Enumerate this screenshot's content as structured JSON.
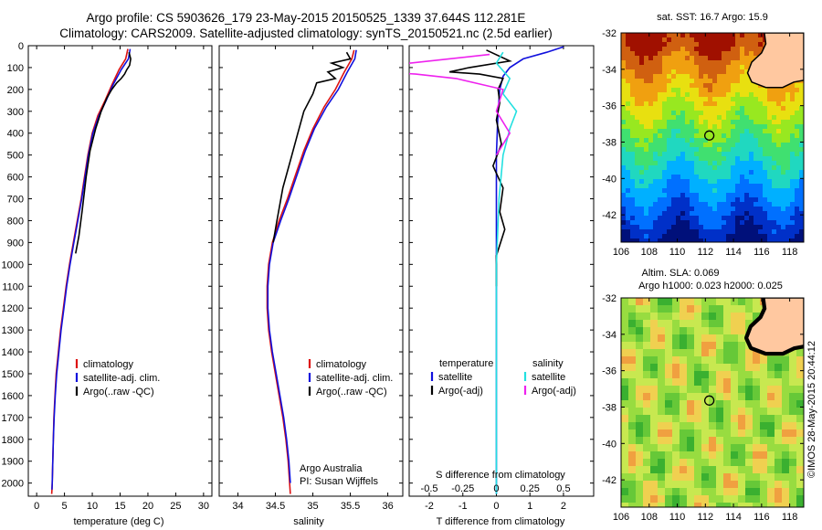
{
  "header": {
    "title_line1": "Argo profile: CS 5903626_179 23-May-2015 20150525_1339 37.644S 112.281E",
    "title_line2": "Climatology: CARS2009. Satellite-adjusted climatology: synTS_20150521.nc (2.5d earlier)"
  },
  "colors": {
    "climatology": "#dd1111",
    "satellite": "#1010dd",
    "argo": "#000000",
    "salinity_satellite": "#22e0e0",
    "salinity_argo": "#ee22ee",
    "land": "#ffc8a0",
    "coast": "#000000"
  },
  "chart_data": [
    {
      "type": "line",
      "id": "temperature",
      "xlabel": "temperature (deg C)",
      "ylabel": "",
      "xlim": [
        -1.5,
        31.5
      ],
      "ylim": [
        2060,
        0
      ],
      "xticks": [
        "0",
        "5",
        "10",
        "15",
        "20",
        "25",
        "30"
      ],
      "xtick_values": [
        0,
        5,
        10,
        15,
        20,
        25,
        30
      ],
      "yticks": [
        "0",
        "100",
        "200",
        "300",
        "400",
        "500",
        "600",
        "700",
        "800",
        "900",
        "1000",
        "1100",
        "1200",
        "1300",
        "1400",
        "1500",
        "1600",
        "1700",
        "1800",
        "1900",
        "2000"
      ],
      "ytick_values": [
        0,
        100,
        200,
        300,
        400,
        500,
        600,
        700,
        800,
        900,
        1000,
        1100,
        1200,
        1300,
        1400,
        1500,
        1600,
        1700,
        1800,
        1900,
        2000
      ],
      "series": [
        {
          "name": "climatology",
          "color_key": "climatology",
          "x": [
            16.4,
            16.0,
            14.8,
            13.5,
            12.3,
            11.0,
            10.0,
            9.2,
            8.6,
            8.0,
            7.3,
            6.6,
            5.9,
            5.3,
            4.8,
            4.3,
            3.9,
            3.5,
            3.3,
            3.1,
            3.0,
            2.9,
            2.85,
            2.8,
            2.75,
            2.7
          ],
          "y": [
            15,
            60,
            110,
            180,
            250,
            320,
            400,
            500,
            600,
            700,
            800,
            900,
            1000,
            1100,
            1200,
            1300,
            1400,
            1500,
            1600,
            1700,
            1800,
            1900,
            1950,
            2000,
            2030,
            2050
          ]
        },
        {
          "name": "satellite-adj. clim.",
          "color_key": "satellite",
          "x": [
            16.8,
            16.5,
            15.2,
            13.7,
            12.5,
            11.2,
            10.1,
            9.3,
            8.7,
            8.1,
            7.4,
            6.7,
            6.0,
            5.4,
            4.9,
            4.4,
            4.0,
            3.6,
            3.35,
            3.15,
            3.0,
            2.9,
            2.85,
            2.8,
            2.75
          ],
          "y": [
            15,
            60,
            110,
            180,
            250,
            320,
            400,
            500,
            600,
            700,
            800,
            900,
            1000,
            1100,
            1200,
            1300,
            1400,
            1500,
            1600,
            1700,
            1800,
            1900,
            1950,
            2000,
            2030
          ]
        },
        {
          "name": "Argo(..raw -QC)",
          "color_key": "argo",
          "x": [
            16.6,
            16.9,
            16.7,
            16.2,
            15.8,
            15.2,
            14.4,
            13.5,
            12.6,
            11.6,
            10.6,
            9.6,
            8.9,
            8.2,
            7.6,
            7.0
          ],
          "y": [
            30,
            60,
            90,
            110,
            130,
            150,
            170,
            200,
            240,
            300,
            380,
            480,
            600,
            750,
            870,
            950
          ]
        }
      ],
      "legend": [
        "climatology",
        "satellite-adj. clim.",
        "Argo(..raw -QC)"
      ],
      "legend_position": "bottom-right"
    },
    {
      "type": "line",
      "id": "salinity",
      "xlabel": "salinity",
      "xlim": [
        33.75,
        36.2
      ],
      "ylim": [
        2060,
        0
      ],
      "xticks": [
        "34",
        "34.5",
        "35",
        "35.5",
        "36"
      ],
      "xtick_values": [
        34,
        34.5,
        35,
        35.5,
        36
      ],
      "series": [
        {
          "name": "climatology",
          "color_key": "climatology",
          "x": [
            35.55,
            35.52,
            35.42,
            35.3,
            35.15,
            35.0,
            34.88,
            34.78,
            34.66,
            34.55,
            34.46,
            34.41,
            34.39,
            34.39,
            34.41,
            34.45,
            34.5,
            34.55,
            34.6,
            34.64,
            34.67,
            34.69,
            34.7
          ],
          "y": [
            20,
            60,
            120,
            200,
            280,
            380,
            480,
            580,
            700,
            800,
            900,
            1000,
            1100,
            1200,
            1300,
            1400,
            1500,
            1600,
            1700,
            1800,
            1900,
            2000,
            2050
          ]
        },
        {
          "name": "satellite-adj. clim.",
          "color_key": "satellite",
          "x": [
            35.58,
            35.56,
            35.46,
            35.34,
            35.18,
            35.02,
            34.9,
            34.8,
            34.68,
            34.57,
            34.47,
            34.42,
            34.4,
            34.4,
            34.42,
            34.46,
            34.51,
            34.56,
            34.61,
            34.65,
            34.68,
            34.7
          ],
          "y": [
            20,
            60,
            120,
            200,
            280,
            380,
            480,
            580,
            700,
            800,
            900,
            1000,
            1100,
            1200,
            1300,
            1400,
            1500,
            1600,
            1700,
            1800,
            1900,
            2000
          ]
        },
        {
          "name": "Argo(..raw -QC)",
          "color_key": "argo",
          "x": [
            35.45,
            35.5,
            35.25,
            35.4,
            35.2,
            35.3,
            35.05,
            35.0,
            34.88,
            34.8,
            34.72,
            34.6,
            34.52,
            34.47
          ],
          "y": [
            30,
            60,
            80,
            100,
            120,
            150,
            170,
            220,
            300,
            400,
            500,
            650,
            800,
            900
          ]
        }
      ],
      "legend": [
        "climatology",
        "satellite-adj. clim.",
        "Argo(..raw -QC)"
      ],
      "annotations": [
        "Argo Australia",
        "PI: Susan Wijffels"
      ]
    },
    {
      "type": "line",
      "id": "difference",
      "xlabel_top": "S difference from climatology",
      "xlabel": "T difference from climatology",
      "xlim": [
        -2.6,
        2.9
      ],
      "ylim": [
        2060,
        0
      ],
      "t_xticks": [
        "-2",
        "-1",
        "0",
        "1",
        "2"
      ],
      "t_xtick_values": [
        -2,
        -1,
        0,
        1,
        2
      ],
      "s_xticks": [
        "-0.5",
        "-0.25",
        "0",
        "0.25",
        "0.5"
      ],
      "s_xtick_values": [
        -0.5,
        -0.25,
        0,
        0.25,
        0.5
      ],
      "series": [
        {
          "name": "T satellite",
          "color_key": "satellite",
          "x": [
            2.0,
            1.5,
            0.8,
            0.4,
            0.2,
            0.1,
            0.05,
            0.0,
            0.0,
            0.0,
            0.0,
            0.0
          ],
          "y": [
            5,
            30,
            60,
            100,
            140,
            200,
            300,
            500,
            800,
            1200,
            1600,
            2050
          ]
        },
        {
          "name": "T Argo(-adj)",
          "color_key": "argo",
          "x": [
            -0.3,
            0.4,
            -0.8,
            -1.4,
            -0.5,
            0.2,
            0.05,
            0.1,
            0.0,
            0.15,
            -0.1,
            0.2,
            0.1,
            0.25,
            0.0,
            0.0
          ],
          "y": [
            20,
            70,
            100,
            120,
            130,
            150,
            200,
            260,
            340,
            450,
            550,
            650,
            760,
            840,
            960,
            1100
          ]
        },
        {
          "name": "S satellite",
          "color_key": "salinity_satellite",
          "x": [
            0.05,
            0.0,
            0.1,
            0.05,
            0.15,
            0.1,
            0.05,
            0.02,
            0.0,
            0.0
          ],
          "y": [
            30,
            80,
            150,
            220,
            300,
            380,
            500,
            700,
            1000,
            2050
          ]
        },
        {
          "name": "S Argo(-adj)",
          "color_key": "salinity_argo",
          "x": [
            -0.05,
            -1.1,
            -0.6,
            -0.3,
            0.05,
            0.0,
            0.1,
            0.0
          ],
          "y": [
            40,
            110,
            130,
            150,
            200,
            300,
            400,
            500
          ]
        }
      ],
      "legend_temperature": {
        "title": "temperature",
        "items": [
          "satellite",
          "Argo(-adj)"
        ]
      },
      "legend_salinity": {
        "title": "salinity",
        "items": [
          "satellite",
          "Argo(-adj)"
        ]
      }
    },
    {
      "type": "heatmap",
      "id": "sst_map",
      "title": "sat. SST: 16.7 Argo: 15.9",
      "xlim": [
        106,
        119
      ],
      "ylim": [
        -43.5,
        -32
      ],
      "xticks": [
        "106",
        "108",
        "110",
        "112",
        "114",
        "116",
        "118"
      ],
      "xtick_values": [
        106,
        108,
        110,
        112,
        114,
        116,
        118
      ],
      "yticks": [
        "-32",
        "-34",
        "-36",
        "-38",
        "-40",
        "-42"
      ],
      "ytick_values": [
        -32,
        -34,
        -36,
        -38,
        -40,
        -42
      ],
      "float_position": [
        112.28,
        -37.64
      ],
      "land": [
        [
          116.2,
          -32
        ],
        [
          116.3,
          -32.6
        ],
        [
          116.0,
          -33.1
        ],
        [
          115.3,
          -33.6
        ],
        [
          115.0,
          -34.2
        ],
        [
          115.3,
          -34.7
        ],
        [
          116.3,
          -35.0
        ],
        [
          117.5,
          -35.0
        ],
        [
          118.3,
          -34.7
        ],
        [
          119,
          -34.6
        ],
        [
          119,
          -32
        ]
      ],
      "palette": [
        "#00107a",
        "#0030c8",
        "#0070ff",
        "#00b0ff",
        "#20d8c0",
        "#40e070",
        "#98e820",
        "#e8e010",
        "#f0a010",
        "#d06010",
        "#a01000"
      ]
    },
    {
      "type": "heatmap",
      "id": "sla_map",
      "title_line1": "Altim. SLA: 0.069",
      "title_line2": "Argo h1000: 0.023 h2000: 0.025",
      "xlim": [
        106,
        119
      ],
      "ylim": [
        -43.5,
        -32
      ],
      "xticks": [
        "106",
        "108",
        "110",
        "112",
        "114",
        "116",
        "118"
      ],
      "xtick_values": [
        106,
        108,
        110,
        112,
        114,
        116,
        118
      ],
      "yticks": [
        "-32",
        "-34",
        "-36",
        "-38",
        "-40",
        "-42"
      ],
      "ytick_values": [
        -32,
        -34,
        -36,
        -38,
        -40,
        -42
      ],
      "float_position": [
        112.28,
        -37.64
      ],
      "side_text": "©IMOS 28-May-2015 20:44:12"
    }
  ]
}
